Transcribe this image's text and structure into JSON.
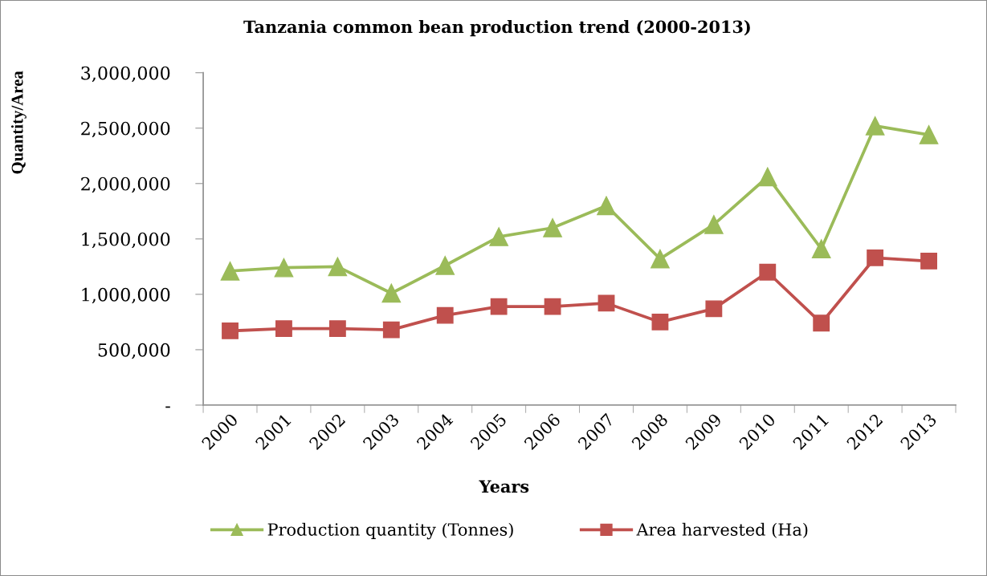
{
  "chart_data": {
    "type": "line",
    "title": "Tanzania common bean production trend (2000-2013)",
    "xlabel": "Years",
    "ylabel": "Quantity/Area",
    "categories": [
      "2000",
      "2001",
      "2002",
      "2003",
      "2004",
      "2005",
      "2006",
      "2007",
      "2008",
      "2009",
      "2010",
      "2011",
      "2012",
      "2013"
    ],
    "series": [
      {
        "name": "Production quantity (Tonnes)",
        "color": "#9bbb59",
        "marker": "triangle",
        "values": [
          1210000,
          1240000,
          1250000,
          1010000,
          1260000,
          1520000,
          1600000,
          1800000,
          1320000,
          1630000,
          2060000,
          1410000,
          2520000,
          2440000
        ]
      },
      {
        "name": "Area harvested (Ha)",
        "color": "#c0504d",
        "marker": "square",
        "values": [
          670000,
          690000,
          690000,
          680000,
          810000,
          890000,
          890000,
          920000,
          750000,
          870000,
          1200000,
          740000,
          1330000,
          1300000
        ]
      }
    ],
    "ylim": [
      0,
      3000000
    ],
    "yticks": [
      {
        "value": 0,
        "label": "-"
      },
      {
        "value": 500000,
        "label": "500,000"
      },
      {
        "value": 1000000,
        "label": "1,000,000"
      },
      {
        "value": 1500000,
        "label": "1,500,000"
      },
      {
        "value": 2000000,
        "label": "2,000,000"
      },
      {
        "value": 2500000,
        "label": "2,500,000"
      },
      {
        "value": 3000000,
        "label": "3,000,000"
      }
    ],
    "legend": "bottom"
  }
}
